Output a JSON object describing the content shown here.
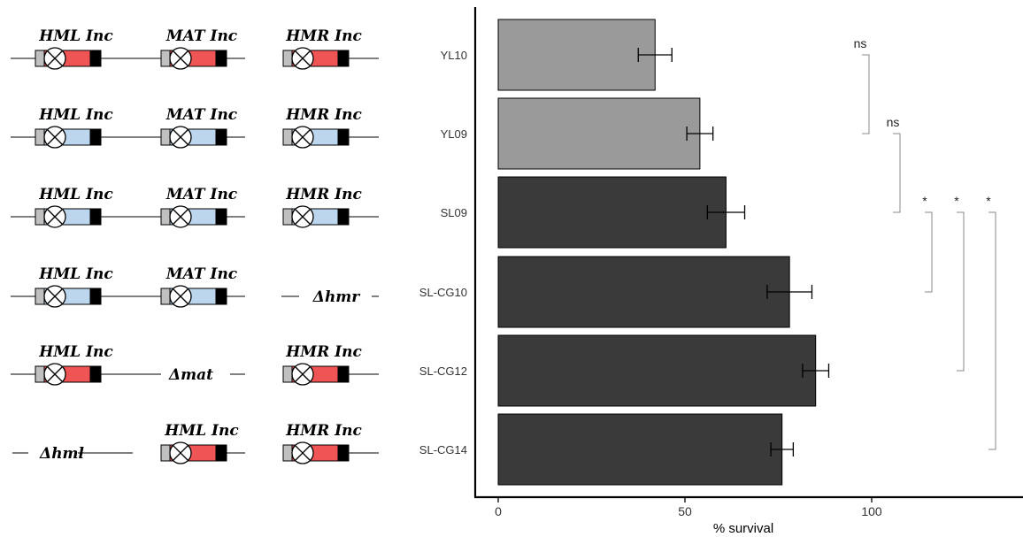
{
  "colors": {
    "red": "#f05555",
    "blue": "#bcd6ee",
    "grey_box": "#c0c0c0",
    "black_box": "#000000",
    "bar_light": "#9a9a9a",
    "bar_dark": "#3a3a3a",
    "bracket": "#888888"
  },
  "schematic": {
    "rows": [
      {
        "slots": [
          {
            "type": "locus",
            "label": "HML Inc",
            "fill": "red"
          },
          {
            "type": "locus",
            "label": "MAT Inc",
            "fill": "red"
          },
          {
            "type": "locus",
            "label": "HMR Inc",
            "fill": "red"
          }
        ]
      },
      {
        "slots": [
          {
            "type": "locus",
            "label": "HML Inc",
            "fill": "blue"
          },
          {
            "type": "locus",
            "label": "MAT Inc",
            "fill": "blue"
          },
          {
            "type": "locus",
            "label": "HMR Inc",
            "fill": "blue"
          }
        ]
      },
      {
        "slots": [
          {
            "type": "locus",
            "label": "HML Inc",
            "fill": "blue"
          },
          {
            "type": "locus",
            "label": "MAT Inc",
            "fill": "blue"
          },
          {
            "type": "locus",
            "label": "HMR Inc",
            "fill": "blue"
          }
        ]
      },
      {
        "slots": [
          {
            "type": "locus",
            "label": "HML Inc",
            "fill": "blue"
          },
          {
            "type": "locus",
            "label": "MAT Inc",
            "fill": "blue"
          },
          {
            "type": "deletion",
            "label": "Δhmr"
          }
        ]
      },
      {
        "slots": [
          {
            "type": "locus",
            "label": "HML Inc",
            "fill": "red"
          },
          {
            "type": "deletion",
            "label": "Δmat"
          },
          {
            "type": "locus",
            "label": "HMR Inc",
            "fill": "red"
          }
        ]
      },
      {
        "slots": [
          {
            "type": "deletion",
            "label": "Δhml"
          },
          {
            "type": "locus",
            "label": "HML Inc",
            "fill": "red"
          },
          {
            "type": "locus",
            "label": "HMR Inc",
            "fill": "red"
          }
        ]
      }
    ]
  },
  "chart_data": {
    "type": "bar",
    "orientation": "horizontal",
    "categories": [
      "YL10",
      "YL09",
      "SL09",
      "SL-CG10",
      "SL-CG12",
      "SL-CG14"
    ],
    "values": [
      42,
      54,
      61,
      78,
      85,
      76
    ],
    "errors": [
      4.5,
      3.5,
      5,
      6,
      3.5,
      3
    ],
    "bar_shades": [
      "light",
      "light",
      "dark",
      "dark",
      "dark",
      "dark"
    ],
    "xlabel": "% survival",
    "xlim": [
      0,
      135
    ],
    "xticks": [
      0,
      50,
      100
    ],
    "grid": false,
    "significance": [
      {
        "from": "YL10",
        "to": "YL09",
        "label": "ns",
        "level": 0
      },
      {
        "from": "YL09",
        "to": "SL09",
        "label": "ns",
        "level": 1
      },
      {
        "from": "SL09",
        "to": "SL-CG10",
        "label": "*",
        "level": 2
      },
      {
        "from": "SL09",
        "to": "SL-CG12",
        "label": "*",
        "level": 3
      },
      {
        "from": "SL09",
        "to": "SL-CG14",
        "label": "*",
        "level": 4
      }
    ]
  }
}
